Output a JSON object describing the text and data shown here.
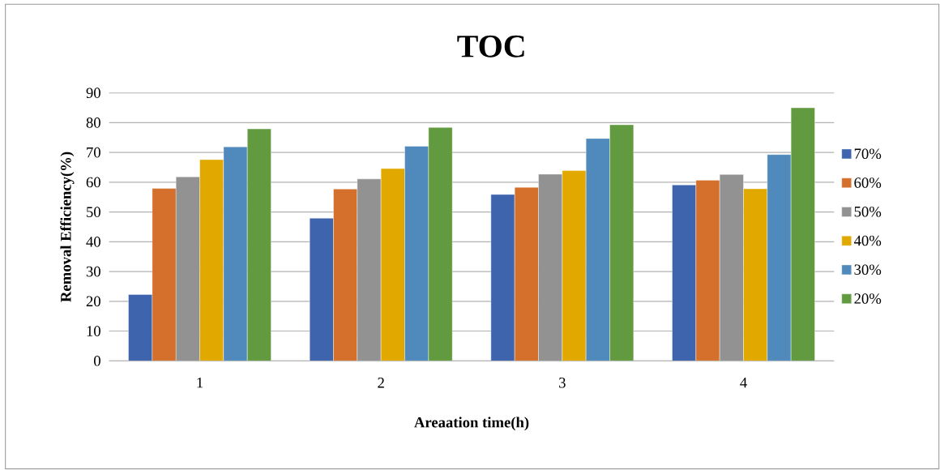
{
  "chart_data": {
    "type": "bar",
    "title": "TOC",
    "xlabel": "Areaation time(h)",
    "ylabel": "Removal Efficiency(%)",
    "categories": [
      "1",
      "2",
      "3",
      "4"
    ],
    "series": [
      {
        "name": "70%",
        "color": "#3e64ad",
        "values": [
          22.3,
          47.9,
          55.9,
          59.1
        ]
      },
      {
        "name": "60%",
        "color": "#d4702c",
        "values": [
          57.9,
          57.7,
          58.3,
          60.7
        ]
      },
      {
        "name": "50%",
        "color": "#929292",
        "values": [
          61.8,
          61.1,
          62.7,
          62.6
        ]
      },
      {
        "name": "40%",
        "color": "#e1a900",
        "values": [
          67.6,
          64.6,
          63.9,
          57.8
        ]
      },
      {
        "name": "30%",
        "color": "#508abd",
        "values": [
          71.9,
          72.1,
          74.7,
          69.3
        ]
      },
      {
        "name": "20%",
        "color": "#629a3f",
        "values": [
          77.9,
          78.4,
          79.3,
          85.0
        ]
      }
    ],
    "ylim": [
      0,
      90
    ],
    "yticks": [
      0,
      10,
      20,
      30,
      40,
      50,
      60,
      70,
      80,
      90
    ],
    "grid": "y",
    "legend": "right"
  }
}
